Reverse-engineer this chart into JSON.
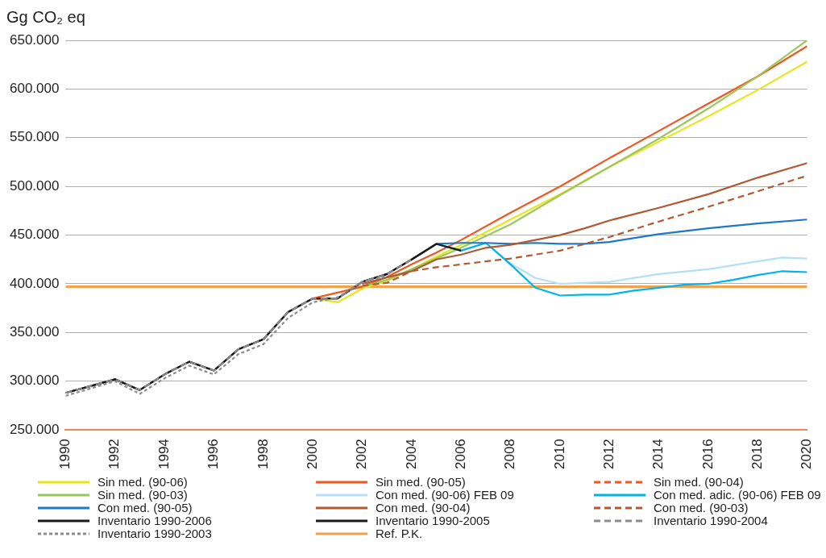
{
  "chart_data": {
    "type": "line",
    "ylabel": "Gg CO₂ eq",
    "xlim": [
      1990,
      2020
    ],
    "xticks": [
      1990,
      1992,
      1994,
      1996,
      1998,
      2000,
      2002,
      2004,
      2006,
      2008,
      2010,
      2012,
      2014,
      2016,
      2018,
      2020
    ],
    "ylim": [
      250000,
      650000
    ],
    "yticks": [
      {
        "value": 250000,
        "label": "250.000"
      },
      {
        "value": 300000,
        "label": "300.000"
      },
      {
        "value": 350000,
        "label": "350.000"
      },
      {
        "value": 400000,
        "label": "400.000"
      },
      {
        "value": 450000,
        "label": "450.000"
      },
      {
        "value": 500000,
        "label": "500.000"
      },
      {
        "value": 550000,
        "label": "550.000"
      },
      {
        "value": 600000,
        "label": "600.000"
      },
      {
        "value": 650000,
        "label": "650.000"
      }
    ],
    "grid": "y",
    "legend": "bottom",
    "marker": "none",
    "line_style": "solid",
    "series": [
      {
        "name": "Sin med. (90-06)",
        "color": "#e6e619",
        "x": [
          2000,
          2001,
          2002,
          2003,
          2004,
          2005,
          2006,
          2008,
          2010,
          2012,
          2014,
          2016,
          2018,
          2020
        ],
        "values": [
          385000,
          381000,
          395000,
          403000,
          415000,
          428000,
          440000,
          466000,
          492000,
          520000,
          546000,
          572000,
          599000,
          628000
        ]
      },
      {
        "name": "Sin med. (90-05)",
        "color": "#f0561e",
        "x": [
          2000,
          2002,
          2003,
          2004,
          2005,
          2006,
          2008,
          2010,
          2012,
          2014,
          2016,
          2018,
          2020
        ],
        "values": [
          385000,
          397000,
          407000,
          420000,
          432000,
          445000,
          473000,
          500000,
          529000,
          557000,
          585000,
          613000,
          644000
        ]
      },
      {
        "name": "Sin med. (90-04)",
        "color": "#f0561e",
        "line_style": "dashed"
      },
      {
        "name": "Sin med. (90-03)",
        "color": "#9bc85a",
        "x": [
          2002,
          2003,
          2004,
          2006,
          2008,
          2010,
          2012,
          2014,
          2016,
          2018,
          2020
        ],
        "values": [
          397000,
          404000,
          415000,
          437000,
          461000,
          491000,
          520000,
          549000,
          580000,
          613000,
          650000
        ]
      },
      {
        "name": "Con med. (90-06) FEB 09",
        "color": "#b4e0f5",
        "x": [
          2006,
          2007,
          2008,
          2009,
          2010,
          2012,
          2014,
          2016,
          2018,
          2019,
          2020
        ],
        "values": [
          434000,
          442000,
          421000,
          406000,
          400000,
          402000,
          410000,
          415000,
          423000,
          427000,
          426000
        ]
      },
      {
        "name": "Con med. adic. (90-06) FEB 09",
        "color": "#00b4eb",
        "x": [
          2005,
          2006,
          2007,
          2008,
          2009,
          2010,
          2011,
          2012,
          2013,
          2014,
          2015,
          2016,
          2017,
          2018,
          2019,
          2020
        ],
        "values": [
          441000,
          434000,
          442000,
          420000,
          396000,
          388000,
          389000,
          389000,
          393000,
          396000,
          399000,
          400000,
          404000,
          409000,
          413000,
          412000
        ]
      },
      {
        "name": "Con med. (90-05)",
        "color": "#1e78c8",
        "x": [
          2005,
          2006,
          2007,
          2008,
          2009,
          2010,
          2011,
          2012,
          2014,
          2016,
          2018,
          2020
        ],
        "values": [
          441000,
          442000,
          442000,
          441000,
          442000,
          441000,
          441000,
          443000,
          451000,
          457000,
          462000,
          466000
        ]
      },
      {
        "name": "Con med. (90-04)",
        "color": "#b05a32",
        "x": [
          2002,
          2004,
          2005,
          2006,
          2007,
          2008,
          2010,
          2011,
          2012,
          2014,
          2016,
          2018,
          2020
        ],
        "values": [
          400000,
          413000,
          425000,
          430000,
          437000,
          440000,
          450000,
          457000,
          465000,
          478000,
          492000,
          509000,
          524000
        ]
      },
      {
        "name": "Con med. (90-03)",
        "color": "#b05a32",
        "line_style": "dashed",
        "x": [
          2002,
          2003,
          2004,
          2005,
          2006,
          2008,
          2010,
          2012,
          2014,
          2016,
          2018,
          2020
        ],
        "values": [
          398000,
          401000,
          413000,
          417000,
          420000,
          426000,
          434000,
          448000,
          464000,
          479000,
          495000,
          511000
        ]
      },
      {
        "name": "Inventario 1990-2006",
        "color": "#1a1a1a",
        "x": [
          1990,
          1991,
          1992,
          1993,
          1994,
          1995,
          1996,
          1997,
          1998,
          1999,
          2000,
          2001,
          2002,
          2003,
          2004,
          2005,
          2006
        ],
        "values": [
          288000,
          295000,
          302000,
          291000,
          307000,
          320000,
          311000,
          333000,
          343000,
          371000,
          385000,
          385000,
          402000,
          410000,
          425000,
          441000,
          434000
        ]
      },
      {
        "name": "Inventario 1990-2005",
        "color": "#1a1a1a",
        "x": [
          1990,
          1991,
          1992,
          1993,
          1994,
          1995,
          1996,
          1997,
          1998,
          1999,
          2000,
          2001,
          2002,
          2003,
          2004,
          2005
        ],
        "values": [
          288000,
          295000,
          302000,
          291000,
          307000,
          320000,
          311000,
          333000,
          343000,
          371000,
          385000,
          385000,
          402000,
          410000,
          425000,
          441000
        ]
      },
      {
        "name": "Inventario 1990-2004",
        "color": "#8c8c8c",
        "line_style": "dashed",
        "x": [
          1990,
          1991,
          1992,
          1993,
          1994,
          1995,
          1996,
          1997,
          1998,
          1999,
          2000,
          2001,
          2002,
          2003,
          2004
        ],
        "values": [
          288000,
          295000,
          302000,
          291000,
          307000,
          320000,
          311000,
          333000,
          343000,
          371000,
          385000,
          385000,
          402000,
          410000,
          425000
        ]
      },
      {
        "name": "Inventario 1990-2003",
        "color": "#8c8c8c",
        "line_style": "dotted",
        "x": [
          1990,
          1992,
          1993,
          1994,
          1995,
          1996,
          1997,
          1998,
          1999,
          2000,
          2001,
          2002,
          2003
        ],
        "values": [
          285000,
          300000,
          287000,
          303000,
          316000,
          307000,
          328000,
          338000,
          365000,
          381000,
          386000,
          402000,
          408000
        ]
      }
    ],
    "ref_lines": [
      {
        "axis": "y",
        "value": 397000,
        "label": "Ref. P.K.",
        "color": "#f5a04b"
      }
    ]
  }
}
